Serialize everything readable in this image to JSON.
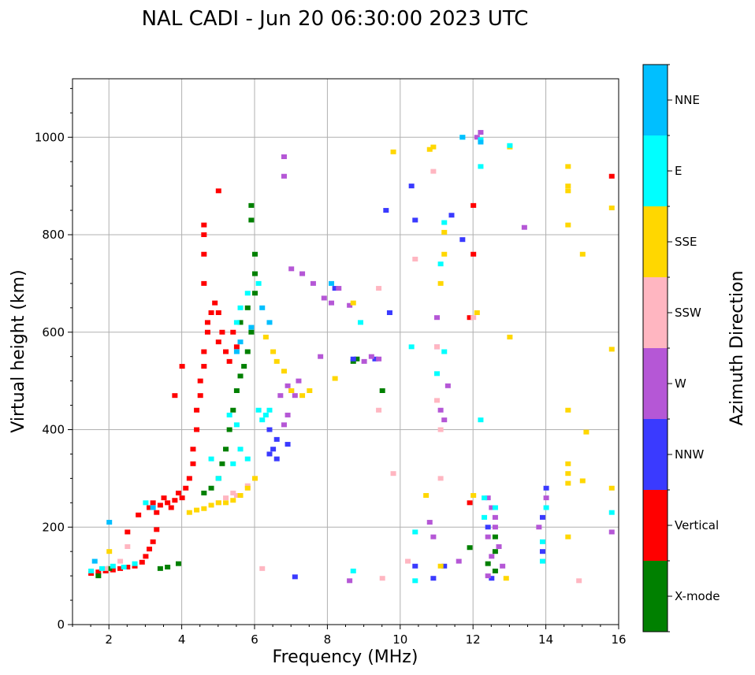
{
  "colors": {
    "X-mode": "#008000",
    "Vertical": "#ff0000",
    "NNW": "#3a3aff",
    "W": "#b557d6",
    "SSW": "#ffb6c1",
    "SSE": "#ffd700",
    "E": "#00ffff",
    "NNE": "#00bfff"
  },
  "chart_data": {
    "type": "scatter",
    "title": "NAL CADI - Jun 20 06:30:00 2023 UTC",
    "xlabel": "Frequency (MHz)",
    "ylabel": "Virtual height (km)",
    "xlim": [
      1,
      16
    ],
    "ylim": [
      0,
      1120
    ],
    "xticks": [
      2,
      4,
      6,
      8,
      10,
      12,
      14,
      16
    ],
    "yticks": [
      0,
      200,
      400,
      600,
      800,
      1000
    ],
    "grid": true,
    "colorbar": {
      "label": "Azimuth Direction",
      "categories": [
        "X-mode",
        "Vertical",
        "NNW",
        "W",
        "SSW",
        "SSE",
        "E",
        "NNE"
      ]
    },
    "series": [
      {
        "name": "Vertical",
        "points": [
          [
            1.5,
            105
          ],
          [
            1.7,
            108
          ],
          [
            1.9,
            110
          ],
          [
            2.1,
            112
          ],
          [
            2.3,
            115
          ],
          [
            2.5,
            118
          ],
          [
            2.7,
            120
          ],
          [
            2.9,
            128
          ],
          [
            3.0,
            140
          ],
          [
            3.1,
            155
          ],
          [
            3.2,
            170
          ],
          [
            3.3,
            195
          ],
          [
            3.1,
            240
          ],
          [
            3.2,
            250
          ],
          [
            3.3,
            230
          ],
          [
            3.4,
            245
          ],
          [
            3.5,
            260
          ],
          [
            3.6,
            250
          ],
          [
            3.7,
            240
          ],
          [
            3.8,
            255
          ],
          [
            3.9,
            270
          ],
          [
            4.0,
            260
          ],
          [
            4.1,
            280
          ],
          [
            4.2,
            300
          ],
          [
            4.3,
            330
          ],
          [
            4.3,
            360
          ],
          [
            4.4,
            400
          ],
          [
            4.4,
            440
          ],
          [
            4.5,
            470
          ],
          [
            4.5,
            500
          ],
          [
            4.6,
            530
          ],
          [
            4.6,
            560
          ],
          [
            4.7,
            600
          ],
          [
            4.7,
            620
          ],
          [
            4.8,
            640
          ],
          [
            4.9,
            660
          ],
          [
            5.0,
            640
          ],
          [
            5.1,
            600
          ],
          [
            5.2,
            560
          ],
          [
            5.3,
            540
          ],
          [
            5.0,
            580
          ],
          [
            5.4,
            600
          ],
          [
            5.5,
            570
          ],
          [
            4.6,
            700
          ],
          [
            4.6,
            760
          ],
          [
            4.6,
            800
          ],
          [
            4.6,
            820
          ],
          [
            4.0,
            530
          ],
          [
            3.8,
            470
          ],
          [
            5.0,
            890
          ],
          [
            2.8,
            225
          ],
          [
            2.5,
            190
          ],
          [
            12.0,
            860
          ],
          [
            12.0,
            760
          ],
          [
            11.9,
            630
          ],
          [
            15.8,
            920
          ],
          [
            11.9,
            250
          ]
        ]
      },
      {
        "name": "X-mode",
        "points": [
          [
            1.7,
            100
          ],
          [
            2.0,
            115
          ],
          [
            3.4,
            115
          ],
          [
            3.6,
            118
          ],
          [
            3.9,
            125
          ],
          [
            4.6,
            270
          ],
          [
            4.8,
            280
          ],
          [
            5.0,
            300
          ],
          [
            5.1,
            330
          ],
          [
            5.2,
            360
          ],
          [
            5.3,
            400
          ],
          [
            5.4,
            440
          ],
          [
            5.5,
            480
          ],
          [
            5.6,
            510
          ],
          [
            5.7,
            530
          ],
          [
            5.8,
            560
          ],
          [
            5.9,
            600
          ],
          [
            5.6,
            620
          ],
          [
            5.8,
            650
          ],
          [
            6.0,
            680
          ],
          [
            6.0,
            720
          ],
          [
            6.0,
            760
          ],
          [
            5.9,
            830
          ],
          [
            5.9,
            860
          ],
          [
            8.7,
            540
          ],
          [
            8.8,
            545
          ],
          [
            9.5,
            480
          ],
          [
            12.6,
            110
          ],
          [
            12.6,
            150
          ],
          [
            12.6,
            180
          ],
          [
            12.4,
            125
          ],
          [
            11.9,
            158
          ]
        ]
      },
      {
        "name": "NNW",
        "points": [
          [
            6.4,
            350
          ],
          [
            6.5,
            360
          ],
          [
            6.6,
            340
          ],
          [
            6.4,
            400
          ],
          [
            6.6,
            380
          ],
          [
            6.9,
            370
          ],
          [
            8.2,
            690
          ],
          [
            8.7,
            545
          ],
          [
            9.3,
            545
          ],
          [
            12.4,
            200
          ],
          [
            13.9,
            150
          ],
          [
            13.9,
            220
          ],
          [
            14.0,
            280
          ],
          [
            12.5,
            95
          ],
          [
            10.9,
            95
          ],
          [
            10.4,
            120
          ],
          [
            10.3,
            900
          ],
          [
            10.4,
            830
          ],
          [
            11.4,
            840
          ],
          [
            11.7,
            790
          ],
          [
            7.1,
            98
          ],
          [
            9.6,
            850
          ],
          [
            9.7,
            640
          ],
          [
            11.2,
            120
          ]
        ]
      },
      {
        "name": "W",
        "points": [
          [
            6.7,
            470
          ],
          [
            6.9,
            490
          ],
          [
            7.0,
            480
          ],
          [
            7.1,
            470
          ],
          [
            7.2,
            500
          ],
          [
            6.8,
            410
          ],
          [
            6.9,
            430
          ],
          [
            7.0,
            730
          ],
          [
            7.3,
            720
          ],
          [
            7.6,
            700
          ],
          [
            7.9,
            670
          ],
          [
            8.1,
            660
          ],
          [
            8.3,
            690
          ],
          [
            6.8,
            920
          ],
          [
            6.8,
            960
          ],
          [
            7.8,
            550
          ],
          [
            8.6,
            655
          ],
          [
            9.0,
            540
          ],
          [
            9.2,
            550
          ],
          [
            9.4,
            545
          ],
          [
            11.1,
            440
          ],
          [
            11.2,
            420
          ],
          [
            11.3,
            490
          ],
          [
            12.4,
            180
          ],
          [
            12.6,
            220
          ],
          [
            12.7,
            160
          ],
          [
            12.8,
            120
          ],
          [
            12.4,
            260
          ],
          [
            12.4,
            100
          ],
          [
            12.5,
            140
          ],
          [
            12.6,
            200
          ],
          [
            13.8,
            200
          ],
          [
            14.0,
            260
          ],
          [
            15.8,
            190
          ],
          [
            11.0,
            570
          ],
          [
            11.0,
            630
          ],
          [
            12.1,
            1000
          ],
          [
            12.2,
            1010
          ],
          [
            10.8,
            210
          ],
          [
            10.9,
            180
          ],
          [
            13.4,
            815
          ],
          [
            11.6,
            130
          ],
          [
            8.6,
            90
          ],
          [
            12.5,
            240
          ]
        ]
      },
      {
        "name": "SSW",
        "points": [
          [
            5.0,
            250
          ],
          [
            5.2,
            260
          ],
          [
            5.4,
            270
          ],
          [
            5.5,
            265
          ],
          [
            5.8,
            285
          ],
          [
            6.0,
            300
          ],
          [
            1.9,
            115
          ],
          [
            2.3,
            130
          ],
          [
            2.5,
            160
          ],
          [
            9.4,
            690
          ],
          [
            9.4,
            440
          ],
          [
            9.8,
            310
          ],
          [
            10.4,
            750
          ],
          [
            11.0,
            570
          ],
          [
            11.1,
            300
          ],
          [
            11.1,
            400
          ],
          [
            14.9,
            90
          ],
          [
            12.0,
            630
          ],
          [
            6.2,
            115
          ],
          [
            10.9,
            930
          ],
          [
            11.0,
            460
          ],
          [
            10.2,
            130
          ],
          [
            9.5,
            95
          ]
        ]
      },
      {
        "name": "SSE",
        "points": [
          [
            4.2,
            230
          ],
          [
            4.4,
            235
          ],
          [
            4.6,
            238
          ],
          [
            4.8,
            245
          ],
          [
            5.0,
            250
          ],
          [
            5.2,
            250
          ],
          [
            5.4,
            255
          ],
          [
            5.6,
            265
          ],
          [
            5.8,
            280
          ],
          [
            6.0,
            300
          ],
          [
            6.3,
            590
          ],
          [
            6.5,
            560
          ],
          [
            6.6,
            540
          ],
          [
            6.8,
            520
          ],
          [
            7.0,
            480
          ],
          [
            7.3,
            470
          ],
          [
            7.5,
            480
          ],
          [
            2.0,
            150
          ],
          [
            8.2,
            505
          ],
          [
            8.7,
            660
          ],
          [
            9.8,
            970
          ],
          [
            10.8,
            975
          ],
          [
            10.9,
            980
          ],
          [
            11.2,
            805
          ],
          [
            11.1,
            700
          ],
          [
            11.2,
            760
          ],
          [
            12.1,
            640
          ],
          [
            13.0,
            980
          ],
          [
            13.0,
            590
          ],
          [
            14.6,
            940
          ],
          [
            14.6,
            900
          ],
          [
            14.6,
            890
          ],
          [
            14.6,
            820
          ],
          [
            14.6,
            440
          ],
          [
            14.6,
            330
          ],
          [
            14.6,
            310
          ],
          [
            14.6,
            290
          ],
          [
            14.6,
            180
          ],
          [
            15.0,
            760
          ],
          [
            15.1,
            395
          ],
          [
            15.0,
            295
          ],
          [
            15.8,
            855
          ],
          [
            15.8,
            565
          ],
          [
            15.8,
            280
          ],
          [
            12.9,
            95
          ],
          [
            10.7,
            265
          ],
          [
            11.1,
            120
          ],
          [
            12.0,
            265
          ]
        ]
      },
      {
        "name": "E",
        "points": [
          [
            1.5,
            110
          ],
          [
            1.8,
            115
          ],
          [
            2.1,
            120
          ],
          [
            2.4,
            118
          ],
          [
            2.7,
            125
          ],
          [
            3.0,
            250
          ],
          [
            4.8,
            340
          ],
          [
            5.0,
            300
          ],
          [
            5.4,
            330
          ],
          [
            5.6,
            360
          ],
          [
            5.8,
            340
          ],
          [
            6.1,
            440
          ],
          [
            6.2,
            420
          ],
          [
            6.3,
            430
          ],
          [
            6.4,
            440
          ],
          [
            5.5,
            620
          ],
          [
            5.6,
            650
          ],
          [
            5.8,
            680
          ],
          [
            6.1,
            700
          ],
          [
            5.5,
            410
          ],
          [
            5.3,
            430
          ],
          [
            8.7,
            110
          ],
          [
            8.9,
            620
          ],
          [
            10.4,
            190
          ],
          [
            10.3,
            570
          ],
          [
            11.0,
            515
          ],
          [
            11.2,
            560
          ],
          [
            11.2,
            825
          ],
          [
            11.1,
            740
          ],
          [
            12.2,
            420
          ],
          [
            12.3,
            260
          ],
          [
            12.6,
            240
          ],
          [
            13.9,
            130
          ],
          [
            13.9,
            170
          ],
          [
            14.0,
            240
          ],
          [
            15.8,
            230
          ],
          [
            12.2,
            995
          ],
          [
            11.7,
            1000
          ],
          [
            12.2,
            940
          ],
          [
            13.0,
            983
          ],
          [
            10.4,
            90
          ],
          [
            12.3,
            220
          ]
        ]
      },
      {
        "name": "NNE",
        "points": [
          [
            1.6,
            130
          ],
          [
            2.0,
            210
          ],
          [
            3.2,
            240
          ],
          [
            5.5,
            560
          ],
          [
            5.6,
            580
          ],
          [
            5.9,
            610
          ],
          [
            6.2,
            650
          ],
          [
            6.4,
            620
          ],
          [
            8.1,
            700
          ],
          [
            12.2,
            990
          ],
          [
            11.7,
            1000
          ]
        ]
      }
    ]
  }
}
